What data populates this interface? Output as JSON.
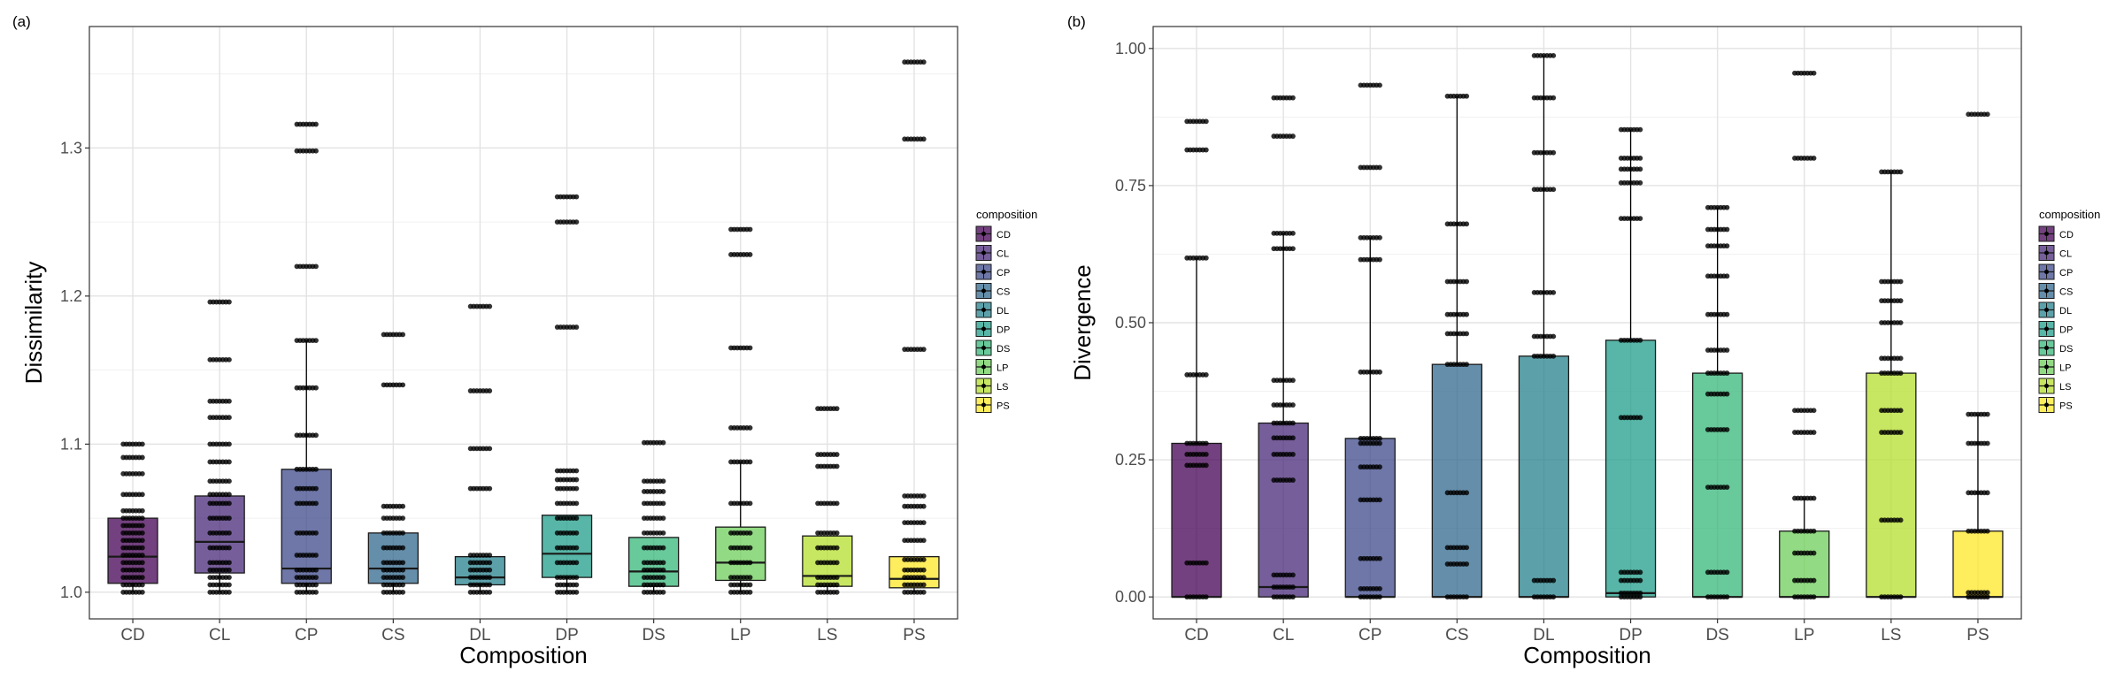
{
  "chart_data": [
    {
      "panel_label": "(a)",
      "type": "box",
      "xlabel": "Composition",
      "ylabel": "Dissimilarity",
      "ylim": [
        0.982,
        1.382
      ],
      "yticks": [
        "1.0",
        "1.1",
        "1.2",
        "1.3"
      ],
      "ytick_values": [
        1.0,
        1.1,
        1.2,
        1.3
      ],
      "categories": [
        "CD",
        "CL",
        "CP",
        "CS",
        "DL",
        "DP",
        "DS",
        "LP",
        "LS",
        "PS"
      ],
      "colors": [
        "#440154",
        "#482878",
        "#3E4A89",
        "#31688E",
        "#26828E",
        "#1F9E89",
        "#35B779",
        "#6DCD59",
        "#B4DE2C",
        "#FDE725"
      ],
      "boxes": [
        {
          "q1": 1.006,
          "median": 1.024,
          "q3": 1.05,
          "whisker_low": 1.0,
          "whisker_high": 1.05
        },
        {
          "q1": 1.013,
          "median": 1.034,
          "q3": 1.065,
          "whisker_low": 1.0,
          "whisker_high": 1.065
        },
        {
          "q1": 1.006,
          "median": 1.016,
          "q3": 1.083,
          "whisker_low": 1.0,
          "whisker_high": 1.17
        },
        {
          "q1": 1.006,
          "median": 1.016,
          "q3": 1.04,
          "whisker_low": 1.0,
          "whisker_high": 1.04
        },
        {
          "q1": 1.005,
          "median": 1.01,
          "q3": 1.024,
          "whisker_low": 1.0,
          "whisker_high": 1.024
        },
        {
          "q1": 1.01,
          "median": 1.026,
          "q3": 1.052,
          "whisker_low": 1.0,
          "whisker_high": 1.052
        },
        {
          "q1": 1.004,
          "median": 1.014,
          "q3": 1.037,
          "whisker_low": 1.0,
          "whisker_high": 1.037
        },
        {
          "q1": 1.008,
          "median": 1.02,
          "q3": 1.044,
          "whisker_low": 1.0,
          "whisker_high": 1.088
        },
        {
          "q1": 1.004,
          "median": 1.011,
          "q3": 1.038,
          "whisker_low": 1.0,
          "whisker_high": 1.038
        },
        {
          "q1": 1.003,
          "median": 1.009,
          "q3": 1.024,
          "whisker_low": 1.0,
          "whisker_high": 1.024
        }
      ],
      "points": [
        [
          1.0,
          1.005,
          1.01,
          1.015,
          1.02,
          1.025,
          1.03,
          1.035,
          1.04,
          1.045,
          1.05,
          1.055,
          1.066,
          1.08,
          1.091,
          1.1
        ],
        [
          1.0,
          1.005,
          1.01,
          1.015,
          1.02,
          1.03,
          1.04,
          1.05,
          1.06,
          1.066,
          1.075,
          1.088,
          1.1,
          1.118,
          1.129,
          1.157,
          1.196
        ],
        [
          1.0,
          1.005,
          1.01,
          1.015,
          1.025,
          1.04,
          1.06,
          1.07,
          1.083,
          1.106,
          1.138,
          1.17,
          1.22,
          1.298,
          1.316
        ],
        [
          1.0,
          1.005,
          1.01,
          1.015,
          1.02,
          1.03,
          1.04,
          1.05,
          1.058,
          1.14,
          1.174
        ],
        [
          1.0,
          1.005,
          1.01,
          1.015,
          1.02,
          1.025,
          1.07,
          1.097,
          1.136,
          1.193
        ],
        [
          1.0,
          1.005,
          1.01,
          1.02,
          1.03,
          1.04,
          1.05,
          1.06,
          1.07,
          1.076,
          1.082,
          1.179,
          1.25,
          1.267
        ],
        [
          1.0,
          1.005,
          1.01,
          1.015,
          1.02,
          1.03,
          1.04,
          1.05,
          1.06,
          1.068,
          1.075,
          1.101
        ],
        [
          1.0,
          1.005,
          1.01,
          1.02,
          1.03,
          1.04,
          1.06,
          1.088,
          1.111,
          1.165,
          1.228,
          1.245
        ],
        [
          1.0,
          1.005,
          1.01,
          1.02,
          1.03,
          1.04,
          1.06,
          1.085,
          1.093,
          1.124
        ],
        [
          1.0,
          1.005,
          1.01,
          1.015,
          1.022,
          1.035,
          1.047,
          1.058,
          1.065,
          1.164,
          1.306,
          1.358
        ]
      ],
      "legend": {
        "title": "composition",
        "entries": [
          "CD",
          "CL",
          "CP",
          "CS",
          "DL",
          "DP",
          "DS",
          "LP",
          "LS",
          "PS"
        ],
        "placement": "right"
      },
      "grid": true
    },
    {
      "panel_label": "(b)",
      "type": "box",
      "xlabel": "Composition",
      "ylabel": "Divergence",
      "ylim": [
        -0.04,
        1.04
      ],
      "yticks": [
        "0.00",
        "0.25",
        "0.50",
        "0.75",
        "1.00"
      ],
      "ytick_values": [
        0.0,
        0.25,
        0.5,
        0.75,
        1.0
      ],
      "categories": [
        "CD",
        "CL",
        "CP",
        "CS",
        "DL",
        "DP",
        "DS",
        "LP",
        "LS",
        "PS"
      ],
      "colors": [
        "#440154",
        "#482878",
        "#3E4A89",
        "#31688E",
        "#26828E",
        "#1F9E89",
        "#35B779",
        "#6DCD59",
        "#B4DE2C",
        "#FDE725"
      ],
      "boxes": [
        {
          "q1": 0.0,
          "median": 0.0,
          "q3": 0.28,
          "whisker_low": 0.0,
          "whisker_high": 0.618
        },
        {
          "q1": 0.0,
          "median": 0.018,
          "q3": 0.317,
          "whisker_low": 0.0,
          "whisker_high": 0.663
        },
        {
          "q1": 0.0,
          "median": 0.0,
          "q3": 0.289,
          "whisker_low": 0.0,
          "whisker_high": 0.655
        },
        {
          "q1": 0.0,
          "median": 0.0,
          "q3": 0.424,
          "whisker_low": 0.0,
          "whisker_high": 0.913
        },
        {
          "q1": 0.0,
          "median": 0.0,
          "q3": 0.439,
          "whisker_low": 0.0,
          "whisker_high": 0.987
        },
        {
          "q1": 0.0,
          "median": 0.007,
          "q3": 0.468,
          "whisker_low": 0.0,
          "whisker_high": 0.852
        },
        {
          "q1": 0.0,
          "median": 0.0,
          "q3": 0.408,
          "whisker_low": 0.0,
          "whisker_high": 0.71
        },
        {
          "q1": 0.0,
          "median": 0.0,
          "q3": 0.12,
          "whisker_low": 0.0,
          "whisker_high": 0.18
        },
        {
          "q1": 0.0,
          "median": 0.0,
          "q3": 0.408,
          "whisker_low": 0.0,
          "whisker_high": 0.775
        },
        {
          "q1": 0.0,
          "median": 0.0,
          "q3": 0.12,
          "whisker_low": 0.0,
          "whisker_high": 0.333
        }
      ],
      "points": [
        [
          0.0,
          0.062,
          0.24,
          0.26,
          0.28,
          0.405,
          0.618,
          0.815,
          0.867
        ],
        [
          0.0,
          0.018,
          0.04,
          0.213,
          0.26,
          0.29,
          0.317,
          0.35,
          0.395,
          0.635,
          0.663,
          0.84,
          0.91
        ],
        [
          0.0,
          0.015,
          0.07,
          0.177,
          0.237,
          0.28,
          0.289,
          0.41,
          0.615,
          0.655,
          0.783,
          0.933
        ],
        [
          0.0,
          0.06,
          0.09,
          0.19,
          0.424,
          0.48,
          0.515,
          0.575,
          0.68,
          0.913
        ],
        [
          0.0,
          0.03,
          0.439,
          0.475,
          0.555,
          0.743,
          0.81,
          0.91,
          0.987
        ],
        [
          0.0,
          0.007,
          0.03,
          0.045,
          0.327,
          0.468,
          0.69,
          0.755,
          0.78,
          0.8,
          0.852
        ],
        [
          0.0,
          0.045,
          0.2,
          0.305,
          0.37,
          0.408,
          0.45,
          0.515,
          0.585,
          0.64,
          0.67,
          0.71
        ],
        [
          0.0,
          0.03,
          0.08,
          0.12,
          0.18,
          0.3,
          0.34,
          0.8,
          0.955
        ],
        [
          0.0,
          0.14,
          0.3,
          0.34,
          0.408,
          0.435,
          0.5,
          0.54,
          0.575,
          0.775
        ],
        [
          0.0,
          0.008,
          0.12,
          0.19,
          0.28,
          0.333,
          0.88
        ]
      ],
      "legend": {
        "title": "composition",
        "entries": [
          "CD",
          "CL",
          "CP",
          "CS",
          "DL",
          "DP",
          "DS",
          "LP",
          "LS",
          "PS"
        ],
        "placement": "right"
      },
      "grid": true
    }
  ]
}
